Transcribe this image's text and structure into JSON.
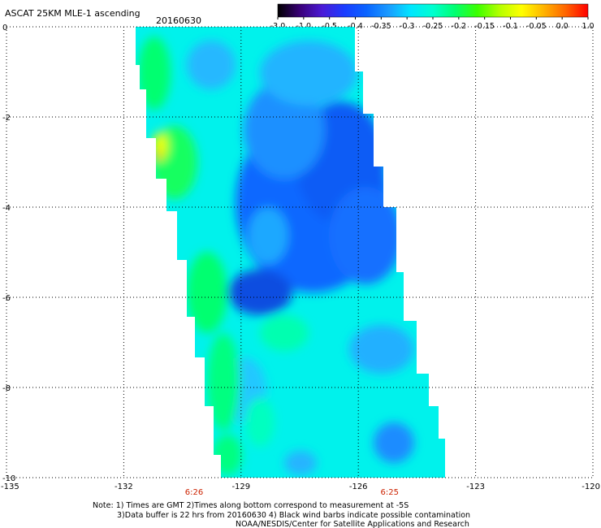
{
  "header": {
    "title": "ASCAT 25KM MLE-1 ascending",
    "date": "20160630"
  },
  "colorbar": {
    "labels": [
      "-3.0",
      "-1.0",
      "-0.5",
      "-0.4",
      "-0.35",
      "-0.3",
      "-0.25",
      "-0.2",
      "-0.15",
      "-0.1",
      "-0.05",
      "0.0",
      "1.0"
    ],
    "colors": [
      "#000000",
      "#3a0078",
      "#4b1ad6",
      "#1a3cff",
      "#0a64ff",
      "#1a9bff",
      "#00e6ff",
      "#00ffd0",
      "#00ff70",
      "#3aff00",
      "#b4ff00",
      "#ffff00",
      "#ffb400",
      "#ff6400",
      "#ff0000"
    ]
  },
  "map": {
    "x_ticks": [
      "-135",
      "-132",
      "-129",
      "-126",
      "-123",
      "-120"
    ],
    "y_ticks": [
      "0",
      "-2",
      "-4",
      "-6",
      "-8",
      "-10"
    ],
    "time_labels": [
      {
        "text": "6:26",
        "lon": -130.2
      },
      {
        "text": "6:25",
        "lon": -125.2
      }
    ],
    "time_label_color": "#cc2200",
    "xlim": [
      -135,
      -120
    ],
    "ylim": [
      -10,
      0
    ]
  },
  "notes": {
    "line1": "Note: 1) Times are GMT 2)Times along bottom correspond to measurement at -5S",
    "line2": "3)Data buffer is 22 hrs from 20160630 4) Black wind barbs indicate possible contamination",
    "line3": "NOAA/NESDIS/Center for Satellite Applications and Research"
  }
}
